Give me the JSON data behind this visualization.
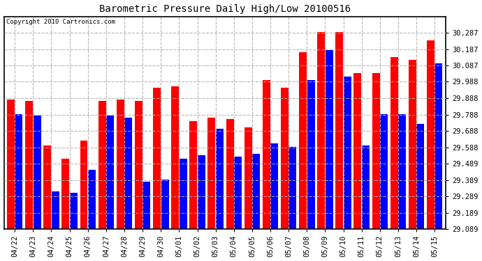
{
  "title": "Barometric Pressure Daily High/Low 20100516",
  "copyright": "Copyright 2010 Cartronics.com",
  "categories": [
    "04/22",
    "04/23",
    "04/24",
    "04/25",
    "04/26",
    "04/27",
    "04/28",
    "04/29",
    "04/30",
    "05/01",
    "05/02",
    "05/03",
    "05/04",
    "05/05",
    "05/06",
    "05/07",
    "05/08",
    "05/09",
    "05/10",
    "05/11",
    "05/12",
    "05/13",
    "05/14",
    "05/15"
  ],
  "highs": [
    29.88,
    29.87,
    29.6,
    29.52,
    29.63,
    29.87,
    29.88,
    29.87,
    29.95,
    29.96,
    29.75,
    29.77,
    29.76,
    29.71,
    30.0,
    29.95,
    30.17,
    30.29,
    30.29,
    30.04,
    30.04,
    30.14,
    30.12,
    30.24
  ],
  "lows": [
    29.79,
    29.78,
    29.32,
    29.31,
    29.45,
    29.78,
    29.77,
    29.38,
    29.39,
    29.52,
    29.54,
    29.7,
    29.53,
    29.55,
    29.61,
    29.59,
    30.0,
    30.18,
    30.02,
    29.6,
    29.79,
    29.79,
    29.73,
    30.1
  ],
  "high_color": "#ff0000",
  "low_color": "#0000ff",
  "bg_color": "#ffffff",
  "grid_color": "#b0b0b0",
  "ylim_min": 29.089,
  "ylim_max": 30.387,
  "ytick_labels": [
    "29.089",
    "29.189",
    "29.289",
    "29.389",
    "29.489",
    "29.588",
    "29.688",
    "29.788",
    "29.888",
    "29.988",
    "30.087",
    "30.187",
    "30.287"
  ],
  "ytick_values": [
    29.089,
    29.189,
    29.289,
    29.389,
    29.489,
    29.588,
    29.688,
    29.788,
    29.888,
    29.988,
    30.087,
    30.187,
    30.287
  ]
}
